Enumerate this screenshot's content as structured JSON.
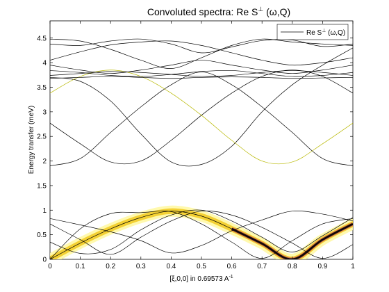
{
  "chart_data": {
    "type": "line",
    "title_main": "Convoluted spectra: Re S",
    "title_sup": "⊥",
    "title_tail": " (ω,Q)",
    "xlabel_main": "[ξ,0,0] in 0.69573 A",
    "xlabel_sup": "-1",
    "ylabel": "Energy transfer (meV)",
    "xlim": [
      0,
      1
    ],
    "ylim": [
      0,
      4.85
    ],
    "xticks": [
      0,
      0.1,
      0.2,
      0.3,
      0.4,
      0.5,
      0.6,
      0.7,
      0.8,
      0.9,
      1
    ],
    "xtick_labels": [
      "0",
      "0.1",
      "0.2",
      "0.3",
      "0.4",
      "0.5",
      "0.6",
      "0.7",
      "0.8",
      "0.9",
      "1"
    ],
    "yticks": [
      0,
      0.5,
      1,
      1.5,
      2,
      2.5,
      3,
      3.5,
      4,
      4.5
    ],
    "ytick_labels": [
      "0",
      "0.5",
      "1",
      "1.5",
      "2",
      "2.5",
      "3",
      "3.5",
      "4",
      "4.5"
    ],
    "grid": false,
    "legend": {
      "placement": "top-right",
      "text_main": "Re S",
      "text_sup": "⊥",
      "text_tail": " (ω,Q)"
    },
    "line_color": "#000000",
    "highlight_color": "#b8b800",
    "intensity_colors": [
      "#fff8a0",
      "#f0c000",
      "#c02060",
      "#000000"
    ],
    "highlight_curve": "hi-upper-mode",
    "intense_region": {
      "x_range": [
        0.6,
        1.0
      ],
      "intensity_peak_x": 0.8
    },
    "series": [
      {
        "id": "lo-a",
        "x": [
          0,
          0.1,
          0.2,
          0.3,
          0.4,
          0.5,
          0.6,
          0.7,
          0.8,
          0.9,
          1
        ],
        "y": [
          0,
          0.62,
          0.93,
          0.95,
          0.97,
          0.72,
          0.35,
          0.02,
          0.38,
          0.72,
          0.83
        ]
      },
      {
        "id": "lo-b",
        "x": [
          0,
          0.1,
          0.2,
          0.3,
          0.4,
          0.5,
          0.6,
          0.7,
          0.8,
          0.9,
          1
        ],
        "y": [
          0.72,
          0.4,
          0.1,
          0.45,
          0.78,
          0.98,
          0.9,
          0.65,
          0.33,
          0.02,
          0.3
        ]
      },
      {
        "id": "lo-c",
        "x": [
          0,
          0.1,
          0.2,
          0.3,
          0.4,
          0.5,
          0.6,
          0.7,
          0.8,
          0.9,
          1
        ],
        "y": [
          0.83,
          0.7,
          0.56,
          0.38,
          0.13,
          0.28,
          0.58,
          0.8,
          0.98,
          0.92,
          0.78
        ]
      },
      {
        "id": "lo-d",
        "x": [
          0,
          0.1,
          0.2,
          0.3,
          0.4,
          0.5,
          0.6,
          0.7,
          0.8,
          0.9,
          1
        ],
        "y": [
          0,
          0.33,
          0.62,
          0.85,
          0.98,
          0.88,
          0.62,
          0.32,
          0.0,
          0.4,
          0.72
        ]
      },
      {
        "id": "lo-e",
        "x": [
          0,
          0.1,
          0.2,
          0.3,
          0.4,
          0.5,
          0.6,
          0.7,
          0.8,
          0.9,
          1
        ],
        "y": [
          0.35,
          0.12,
          0.2,
          0.6,
          0.9,
          1.0,
          0.78,
          0.45,
          0.15,
          0.48,
          0.85
        ]
      },
      {
        "id": "mid-a",
        "x": [
          0,
          0.1,
          0.2,
          0.3,
          0.4,
          0.5,
          0.6,
          0.7,
          0.8,
          0.9,
          1
        ],
        "y": [
          1.9,
          2.05,
          2.58,
          3.1,
          3.55,
          3.81,
          3.55,
          3.1,
          2.58,
          2.05,
          1.9
        ]
      },
      {
        "id": "mid-b",
        "x": [
          0,
          0.1,
          0.2,
          0.3,
          0.4,
          0.5,
          0.6,
          0.7,
          0.8,
          0.9,
          1
        ],
        "y": [
          2.77,
          2.35,
          1.98,
          2.0,
          2.42,
          2.93,
          3.38,
          3.72,
          3.85,
          3.72,
          3.38
        ]
      },
      {
        "id": "mid-c",
        "x": [
          0,
          0.1,
          0.2,
          0.3,
          0.4,
          0.5,
          0.6,
          0.7,
          0.8,
          0.9,
          1
        ],
        "y": [
          3.7,
          3.62,
          3.22,
          2.55,
          1.98,
          1.93,
          2.3,
          3.0,
          3.55,
          3.95,
          4.3
        ]
      },
      {
        "id": "hi-upper-mode",
        "x": [
          0,
          0.1,
          0.2,
          0.3,
          0.4,
          0.5,
          0.6,
          0.7,
          0.8,
          0.9,
          1
        ],
        "y": [
          3.38,
          3.72,
          3.85,
          3.72,
          3.38,
          2.93,
          2.42,
          2.0,
          1.98,
          2.35,
          2.77
        ]
      },
      {
        "id": "hi-a",
        "x": [
          0,
          0.1,
          0.2,
          0.3,
          0.4,
          0.5,
          0.6,
          0.7,
          0.8,
          0.9,
          1
        ],
        "y": [
          4.38,
          4.35,
          4.44,
          4.48,
          4.38,
          4.2,
          4.32,
          4.45,
          4.46,
          4.33,
          4.38
        ]
      },
      {
        "id": "hi-b",
        "x": [
          0,
          0.1,
          0.2,
          0.3,
          0.4,
          0.5,
          0.6,
          0.7,
          0.8,
          0.9,
          1
        ],
        "y": [
          4.48,
          4.44,
          4.27,
          4.05,
          3.88,
          4.1,
          4.35,
          4.48,
          4.42,
          4.38,
          4.35
        ]
      },
      {
        "id": "hi-c",
        "x": [
          0,
          0.1,
          0.2,
          0.3,
          0.4,
          0.5,
          0.6,
          0.7,
          0.8,
          0.9,
          1
        ],
        "y": [
          4.05,
          4.22,
          4.36,
          4.42,
          4.44,
          4.35,
          4.2,
          4.05,
          3.95,
          4.0,
          4.1
        ]
      },
      {
        "id": "hi-d",
        "x": [
          0,
          0.1,
          0.2,
          0.3,
          0.4,
          0.5,
          0.6,
          0.7,
          0.8,
          0.9,
          1
        ],
        "y": [
          3.95,
          3.85,
          3.78,
          3.85,
          3.95,
          4.05,
          3.95,
          3.85,
          3.78,
          3.85,
          3.95
        ]
      },
      {
        "id": "hi-e",
        "x": [
          0,
          0.1,
          0.2,
          0.3,
          0.4,
          0.5,
          0.6,
          0.7,
          0.8,
          0.9,
          1
        ],
        "y": [
          3.74,
          3.78,
          3.82,
          3.8,
          3.76,
          3.72,
          3.74,
          3.8,
          3.84,
          3.8,
          3.74
        ]
      },
      {
        "id": "hi-f",
        "x": [
          0,
          0.1,
          0.2,
          0.3,
          0.4,
          0.5,
          0.6,
          0.7,
          0.8,
          0.9,
          1
        ],
        "y": [
          3.84,
          3.8,
          3.74,
          3.72,
          3.76,
          3.82,
          3.84,
          3.78,
          3.72,
          3.74,
          3.8
        ]
      },
      {
        "id": "hi-g",
        "x": [
          0,
          0.1,
          0.2,
          0.3,
          0.4,
          0.5,
          0.6,
          0.7,
          0.8,
          0.9,
          1
        ],
        "y": [
          3.68,
          3.7,
          3.72,
          3.7,
          3.68,
          3.7,
          3.71,
          3.7,
          3.68,
          3.69,
          3.7
        ]
      }
    ]
  }
}
